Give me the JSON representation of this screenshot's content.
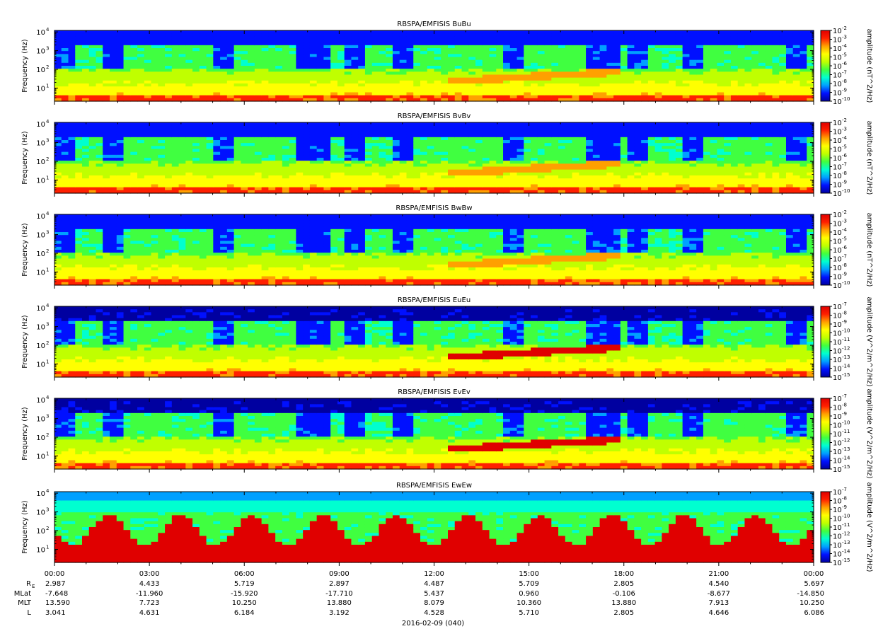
{
  "figure": {
    "date_label": "2016-02-09 (040)"
  },
  "chart_data": [
    {
      "type": "heatmap",
      "title": "RBSPA/EMFISIS  BuBu",
      "ylabel": "Frequency (Hz)",
      "yscale": "log",
      "ylim": [
        2,
        12000
      ],
      "yticks": [
        {
          "base": "10",
          "exp": "1"
        },
        {
          "base": "10",
          "exp": "2"
        },
        {
          "base": "10",
          "exp": "3"
        },
        {
          "base": "10",
          "exp": "4"
        }
      ],
      "colorbar": {
        "label": "amplitude (nT^2/Hz)",
        "ticks": [
          {
            "base": "10",
            "exp": "-2"
          },
          {
            "base": "10",
            "exp": "-3"
          },
          {
            "base": "10",
            "exp": "-4"
          },
          {
            "base": "10",
            "exp": "-5"
          },
          {
            "base": "10",
            "exp": "-6"
          },
          {
            "base": "10",
            "exp": "-7"
          },
          {
            "base": "10",
            "exp": "-8"
          },
          {
            "base": "10",
            "exp": "-9"
          },
          {
            "base": "10",
            "exp": "-10"
          }
        ]
      }
    },
    {
      "type": "heatmap",
      "title": "RBSPA/EMFISIS  BvBv",
      "ylabel": "Frequency (Hz)",
      "yscale": "log",
      "ylim": [
        2,
        12000
      ],
      "yticks": [
        {
          "base": "10",
          "exp": "1"
        },
        {
          "base": "10",
          "exp": "2"
        },
        {
          "base": "10",
          "exp": "3"
        },
        {
          "base": "10",
          "exp": "4"
        }
      ],
      "colorbar": {
        "label": "amplitude (nT^2/Hz)",
        "ticks": [
          {
            "base": "10",
            "exp": "-2"
          },
          {
            "base": "10",
            "exp": "-3"
          },
          {
            "base": "10",
            "exp": "-4"
          },
          {
            "base": "10",
            "exp": "-5"
          },
          {
            "base": "10",
            "exp": "-6"
          },
          {
            "base": "10",
            "exp": "-7"
          },
          {
            "base": "10",
            "exp": "-8"
          },
          {
            "base": "10",
            "exp": "-9"
          },
          {
            "base": "10",
            "exp": "-10"
          }
        ]
      }
    },
    {
      "type": "heatmap",
      "title": "RBSPA/EMFISIS  BwBw",
      "ylabel": "Frequency (Hz)",
      "yscale": "log",
      "ylim": [
        2,
        12000
      ],
      "yticks": [
        {
          "base": "10",
          "exp": "1"
        },
        {
          "base": "10",
          "exp": "2"
        },
        {
          "base": "10",
          "exp": "3"
        },
        {
          "base": "10",
          "exp": "4"
        }
      ],
      "colorbar": {
        "label": "amplitude (nT^2/Hz)",
        "ticks": [
          {
            "base": "10",
            "exp": "-2"
          },
          {
            "base": "10",
            "exp": "-3"
          },
          {
            "base": "10",
            "exp": "-4"
          },
          {
            "base": "10",
            "exp": "-5"
          },
          {
            "base": "10",
            "exp": "-6"
          },
          {
            "base": "10",
            "exp": "-7"
          },
          {
            "base": "10",
            "exp": "-8"
          },
          {
            "base": "10",
            "exp": "-9"
          },
          {
            "base": "10",
            "exp": "-10"
          }
        ]
      }
    },
    {
      "type": "heatmap",
      "title": "RBSPA/EMFISIS  EuEu",
      "ylabel": "Frequency (Hz)",
      "yscale": "log",
      "ylim": [
        2,
        12000
      ],
      "yticks": [
        {
          "base": "10",
          "exp": "1"
        },
        {
          "base": "10",
          "exp": "2"
        },
        {
          "base": "10",
          "exp": "3"
        },
        {
          "base": "10",
          "exp": "4"
        }
      ],
      "colorbar": {
        "label": "amplitude (V^2/m^2/Hz)",
        "ticks": [
          {
            "base": "10",
            "exp": "-7"
          },
          {
            "base": "10",
            "exp": "-8"
          },
          {
            "base": "10",
            "exp": "-9"
          },
          {
            "base": "10",
            "exp": "-10"
          },
          {
            "base": "10",
            "exp": "-11"
          },
          {
            "base": "10",
            "exp": "-12"
          },
          {
            "base": "10",
            "exp": "-13"
          },
          {
            "base": "10",
            "exp": "-14"
          },
          {
            "base": "10",
            "exp": "-15"
          }
        ]
      }
    },
    {
      "type": "heatmap",
      "title": "RBSPA/EMFISIS  EvEv",
      "ylabel": "Frequency (Hz)",
      "yscale": "log",
      "ylim": [
        2,
        12000
      ],
      "yticks": [
        {
          "base": "10",
          "exp": "1"
        },
        {
          "base": "10",
          "exp": "2"
        },
        {
          "base": "10",
          "exp": "3"
        },
        {
          "base": "10",
          "exp": "4"
        }
      ],
      "colorbar": {
        "label": "amplitude (V^2/m^2/Hz)",
        "ticks": [
          {
            "base": "10",
            "exp": "-7"
          },
          {
            "base": "10",
            "exp": "-8"
          },
          {
            "base": "10",
            "exp": "-9"
          },
          {
            "base": "10",
            "exp": "-10"
          },
          {
            "base": "10",
            "exp": "-11"
          },
          {
            "base": "10",
            "exp": "-12"
          },
          {
            "base": "10",
            "exp": "-13"
          },
          {
            "base": "10",
            "exp": "-14"
          },
          {
            "base": "10",
            "exp": "-15"
          }
        ]
      }
    },
    {
      "type": "heatmap",
      "title": "RBSPA/EMFISIS  EwEw",
      "ylabel": "Frequency (Hz)",
      "yscale": "log",
      "ylim": [
        2,
        12000
      ],
      "yticks": [
        {
          "base": "10",
          "exp": "1"
        },
        {
          "base": "10",
          "exp": "2"
        },
        {
          "base": "10",
          "exp": "3"
        },
        {
          "base": "10",
          "exp": "4"
        }
      ],
      "colorbar": {
        "label": "amplitude (V^2/m^2/Hz)",
        "ticks": [
          {
            "base": "10",
            "exp": "-7"
          },
          {
            "base": "10",
            "exp": "-8"
          },
          {
            "base": "10",
            "exp": "-9"
          },
          {
            "base": "10",
            "exp": "-10"
          },
          {
            "base": "10",
            "exp": "-11"
          },
          {
            "base": "10",
            "exp": "-12"
          },
          {
            "base": "10",
            "exp": "-13"
          },
          {
            "base": "10",
            "exp": "-14"
          },
          {
            "base": "10",
            "exp": "-15"
          }
        ]
      }
    }
  ],
  "time_axis": {
    "range_hours": [
      0,
      24
    ],
    "major_step_hours": 3,
    "minor_step_hours": 1,
    "ticks": [
      "00:00",
      "03:00",
      "06:00",
      "09:00",
      "12:00",
      "15:00",
      "18:00",
      "21:00",
      "00:00"
    ]
  },
  "ephemeris": [
    {
      "label": "R",
      "sub": "E",
      "values": [
        "2.987",
        "4.433",
        "5.719",
        "2.897",
        "4.487",
        "5.709",
        "2.805",
        "4.540",
        "5.697"
      ]
    },
    {
      "label": "MLat",
      "sub": "",
      "values": [
        "-7.648",
        "-11.960",
        "-15.920",
        "-17.710",
        "5.437",
        "0.960",
        "-0.106",
        "-8.677",
        "-14.850"
      ]
    },
    {
      "label": "MLT",
      "sub": "",
      "values": [
        "13.590",
        "7.723",
        "10.250",
        "13.880",
        "8.079",
        "10.360",
        "13.880",
        "7.913",
        "10.250"
      ]
    },
    {
      "label": "L",
      "sub": "",
      "values": [
        "3.041",
        "4.631",
        "6.184",
        "3.192",
        "4.528",
        "5.710",
        "2.805",
        "4.646",
        "6.086"
      ]
    }
  ],
  "colors": {
    "colormap": [
      "#0000a0",
      "#0010ff",
      "#00a0ff",
      "#00ffd0",
      "#40ff40",
      "#c0ff00",
      "#ffff00",
      "#ffa000",
      "#ff2000",
      "#e00000"
    ],
    "background_dark": "#000000"
  }
}
